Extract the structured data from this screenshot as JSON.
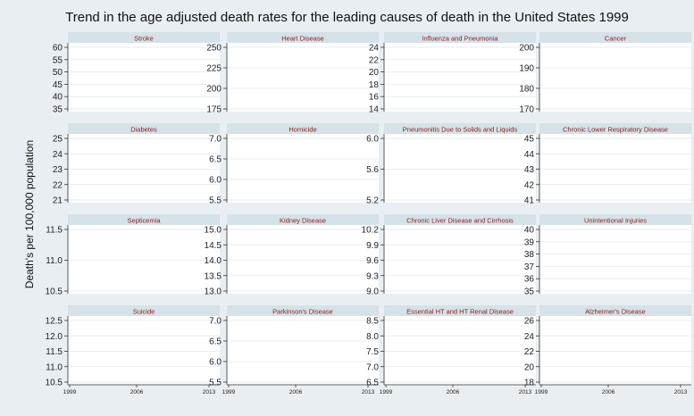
{
  "chart_data": {
    "type": "line",
    "title": "Trend in the age adjusted death rates for the leading causes of death in the United States 1999",
    "ylabel": "Death's per 100,000 population",
    "xlabel": "",
    "layout": "4x4 small multiples",
    "x_ticks": [
      "1999",
      "2006",
      "2013"
    ],
    "grid": true,
    "panels": [
      {
        "title": "Stroke",
        "yticks": [
          "60",
          "55",
          "50",
          "45",
          "40",
          "35"
        ]
      },
      {
        "title": "Heart Disease",
        "yticks": [
          "250",
          "225",
          "200",
          "175"
        ]
      },
      {
        "title": "Influenza and Pneumonia",
        "yticks": [
          "24",
          "22",
          "20",
          "18",
          "16",
          "14"
        ]
      },
      {
        "title": "Cancer",
        "yticks": [
          "200",
          "190",
          "180",
          "170"
        ]
      },
      {
        "title": "Diabetes",
        "yticks": [
          "25",
          "24",
          "23",
          "22",
          "21"
        ]
      },
      {
        "title": "Homicide",
        "yticks": [
          "7.0",
          "6.5",
          "6.0",
          "5.5"
        ]
      },
      {
        "title": "Pneumonitis Due to Solids and Liquids",
        "yticks": [
          "6.0",
          "5.6",
          "5.2"
        ]
      },
      {
        "title": "Chronic Lower Respiratory Disease",
        "yticks": [
          "45",
          "44",
          "43",
          "42",
          "41"
        ]
      },
      {
        "title": "Septicemia",
        "yticks": [
          "11.5",
          "11.0",
          "10.5"
        ]
      },
      {
        "title": "Kidney Disease",
        "yticks": [
          "15.0",
          "14.5",
          "14.0",
          "13.5",
          "13.0"
        ]
      },
      {
        "title": "Chronic Liver Disease and Cirrhosis",
        "yticks": [
          "10.2",
          "9.9",
          "9.6",
          "9.3",
          "9.0"
        ]
      },
      {
        "title": "Unintentional Injuries",
        "yticks": [
          "40",
          "39",
          "38",
          "37",
          "36",
          "35"
        ]
      },
      {
        "title": "Suicide",
        "yticks": [
          "12.5",
          "12.0",
          "11.5",
          "11.0",
          "10.5"
        ]
      },
      {
        "title": "Parkinson's Disease",
        "yticks": [
          "7.0",
          "6.5",
          "6.0",
          "5.5"
        ]
      },
      {
        "title": "Essential HT and HT Renal Disease",
        "yticks": [
          "8.5",
          "8.0",
          "7.5",
          "7.0",
          "6.5"
        ]
      },
      {
        "title": "Alzheimer's Disease",
        "yticks": [
          "26",
          "24",
          "22",
          "20",
          "18"
        ]
      }
    ]
  }
}
